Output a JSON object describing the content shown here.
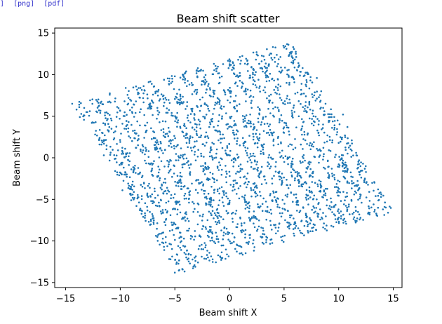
{
  "links": {
    "fragment": "]",
    "png": "[png]",
    "pdf": "[pdf]"
  },
  "chart_data": {
    "type": "scatter",
    "title": "Beam shift scatter",
    "xlabel": "Beam shift X",
    "ylabel": "Beam shift Y",
    "xlim": [
      -16.0,
      15.8
    ],
    "ylim": [
      -15.6,
      15.6
    ],
    "xticks": [
      -15,
      -10,
      -5,
      0,
      5,
      10,
      15
    ],
    "yticks": [
      -15,
      -10,
      -5,
      0,
      5,
      10,
      15
    ],
    "marker_color": "#1f77b4",
    "grid": false,
    "corners": [
      [
        -14.5,
        6.5
      ],
      [
        5.8,
        14.0
      ],
      [
        14.5,
        -6.0
      ],
      [
        -5.0,
        -14.0
      ]
    ],
    "band_count": 15,
    "points": [
      [
        -14.4,
        6.5
      ],
      [
        -14.0,
        5.8
      ],
      [
        -13.7,
        4.9
      ],
      [
        -13.1,
        5.5
      ],
      [
        -12.6,
        4.2
      ],
      [
        -12.3,
        2.8
      ],
      [
        -11.9,
        1.6
      ],
      [
        -11.5,
        0.3
      ],
      [
        -11.8,
        6.6
      ],
      [
        -11.4,
        5.1
      ],
      [
        -11.0,
        3.7
      ],
      [
        -10.6,
        2.2
      ],
      [
        -10.2,
        0.9
      ],
      [
        -9.8,
        -0.6
      ],
      [
        -9.4,
        -2.0
      ],
      [
        -9.0,
        -3.5
      ],
      [
        -9.5,
        8.4
      ],
      [
        -9.1,
        7.0
      ],
      [
        -8.6,
        5.4
      ],
      [
        -8.2,
        3.9
      ],
      [
        -7.8,
        2.4
      ],
      [
        -7.4,
        0.8
      ],
      [
        -7.0,
        -0.7
      ],
      [
        -6.6,
        -2.3
      ],
      [
        -6.2,
        -3.8
      ],
      [
        -5.8,
        -5.4
      ],
      [
        -5.4,
        -6.9
      ],
      [
        -7.4,
        9.1
      ],
      [
        -7.0,
        7.6
      ],
      [
        -6.6,
        6.0
      ],
      [
        -6.1,
        4.4
      ],
      [
        -5.7,
        2.9
      ],
      [
        -5.3,
        1.3
      ],
      [
        -4.9,
        -0.3
      ],
      [
        -4.5,
        -1.8
      ],
      [
        -4.1,
        -3.4
      ],
      [
        -3.7,
        -4.9
      ],
      [
        -3.3,
        -6.5
      ],
      [
        -2.9,
        -8.0
      ],
      [
        -5.0,
        9.8
      ],
      [
        -4.6,
        8.2
      ],
      [
        -4.2,
        6.7
      ],
      [
        -3.8,
        5.1
      ],
      [
        -3.4,
        3.6
      ],
      [
        -3.0,
        2.0
      ],
      [
        -2.6,
        0.5
      ],
      [
        -2.2,
        -1.1
      ],
      [
        -1.8,
        -2.6
      ],
      [
        -1.4,
        -4.2
      ],
      [
        -1.0,
        -5.7
      ],
      [
        -2.6,
        10.6
      ],
      [
        -2.2,
        9.0
      ],
      [
        -1.8,
        7.5
      ],
      [
        -1.4,
        5.9
      ],
      [
        -1.0,
        4.4
      ],
      [
        -0.6,
        2.8
      ],
      [
        -0.2,
        1.2
      ],
      [
        0.2,
        -0.3
      ],
      [
        0.6,
        -1.9
      ],
      [
        1.0,
        -3.4
      ],
      [
        1.4,
        -5.0
      ],
      [
        1.8,
        -6.5
      ],
      [
        0.3,
        11.5
      ],
      [
        0.7,
        9.9
      ],
      [
        1.1,
        8.4
      ],
      [
        1.5,
        6.8
      ],
      [
        1.9,
        5.2
      ],
      [
        2.3,
        3.7
      ],
      [
        2.7,
        2.1
      ],
      [
        3.1,
        0.6
      ],
      [
        3.5,
        -1.0
      ],
      [
        3.9,
        -2.5
      ],
      [
        4.3,
        -4.1
      ],
      [
        2.6,
        12.3
      ],
      [
        3.0,
        10.7
      ],
      [
        3.4,
        9.2
      ],
      [
        3.8,
        7.6
      ],
      [
        4.2,
        6.1
      ],
      [
        4.6,
        4.5
      ],
      [
        5.0,
        3.0
      ],
      [
        5.4,
        1.4
      ],
      [
        5.8,
        -0.1
      ],
      [
        6.2,
        -1.7
      ],
      [
        6.6,
        -3.2
      ],
      [
        7.0,
        -4.8
      ],
      [
        5.4,
        13.6
      ],
      [
        5.8,
        12.0
      ],
      [
        6.2,
        10.5
      ],
      [
        6.6,
        8.9
      ],
      [
        7.0,
        7.4
      ],
      [
        7.4,
        5.8
      ],
      [
        7.8,
        4.3
      ],
      [
        8.2,
        2.7
      ],
      [
        8.6,
        1.2
      ],
      [
        9.0,
        -0.4
      ],
      [
        9.4,
        -1.9
      ],
      [
        9.8,
        -3.5
      ],
      [
        8.0,
        9.6
      ],
      [
        8.4,
        8.0
      ],
      [
        8.8,
        6.5
      ],
      [
        9.2,
        4.9
      ],
      [
        9.6,
        3.4
      ],
      [
        10.0,
        1.8
      ],
      [
        10.4,
        0.3
      ],
      [
        10.8,
        -1.3
      ],
      [
        11.2,
        -2.8
      ],
      [
        10.4,
        5.2
      ],
      [
        10.8,
        3.7
      ],
      [
        11.2,
        2.1
      ],
      [
        11.6,
        0.6
      ],
      [
        12.0,
        -1.0
      ],
      [
        12.4,
        -2.5
      ],
      [
        12.8,
        -4.1
      ],
      [
        13.2,
        -5.6
      ],
      [
        13.6,
        -6.0
      ],
      [
        14.2,
        -5.9
      ],
      [
        -9.8,
        -3.9
      ],
      [
        -9.0,
        -5.1
      ],
      [
        -8.0,
        -6.4
      ],
      [
        -7.2,
        -8.0
      ],
      [
        -6.6,
        -9.5
      ],
      [
        -6.0,
        -10.7
      ],
      [
        -5.4,
        -12.2
      ],
      [
        -5.0,
        -13.8
      ],
      [
        -4.0,
        -11.6
      ],
      [
        -3.2,
        -12.9
      ],
      [
        -2.4,
        -11.0
      ],
      [
        -1.6,
        -9.6
      ],
      [
        -0.6,
        -9.8
      ],
      [
        0.4,
        -10.1
      ],
      [
        1.3,
        -8.8
      ],
      [
        2.2,
        -9.9
      ],
      [
        3.2,
        -9.2
      ],
      [
        4.1,
        -8.1
      ],
      [
        5.1,
        -7.5
      ],
      [
        6.1,
        -8.2
      ],
      [
        7.0,
        -6.9
      ],
      [
        8.3,
        -6.2
      ],
      [
        9.6,
        -5.9
      ],
      [
        11.0,
        -6.8
      ],
      [
        12.1,
        -5.4
      ]
    ]
  }
}
